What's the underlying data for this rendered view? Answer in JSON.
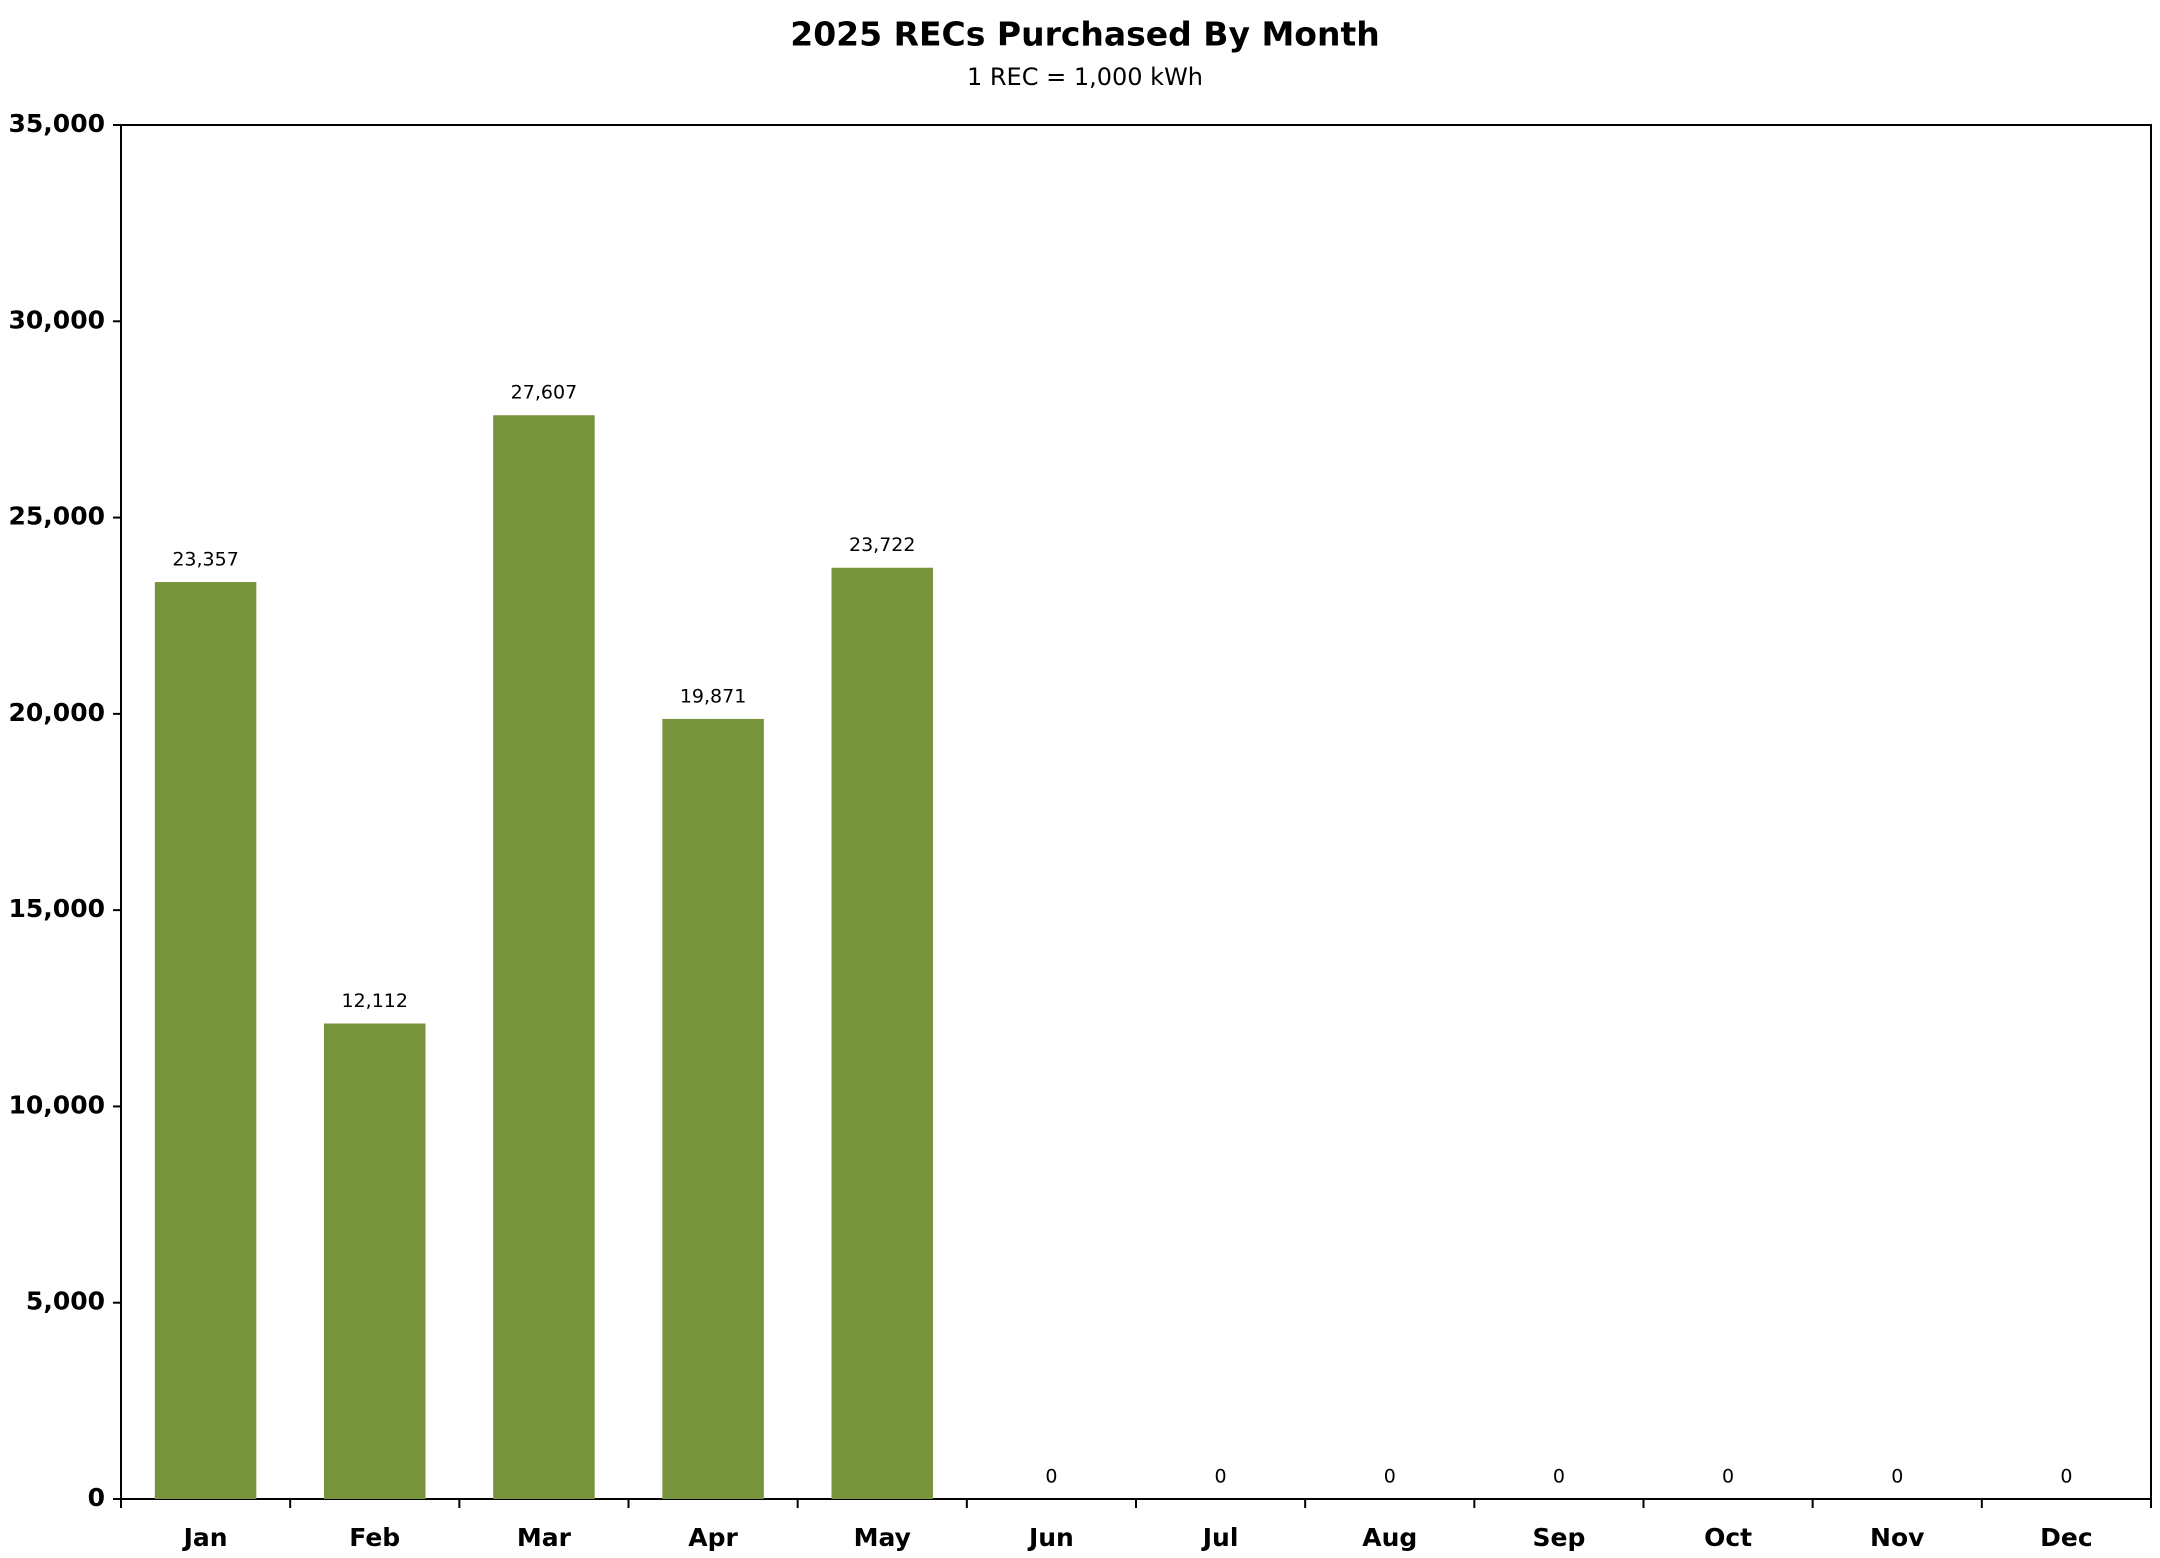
{
  "chart_data": {
    "type": "bar",
    "title": "2025 RECs Purchased By Month",
    "subtitle": "1 REC = 1,000 kWh",
    "categories": [
      "Jan",
      "Feb",
      "Mar",
      "Apr",
      "May",
      "Jun",
      "Jul",
      "Aug",
      "Sep",
      "Oct",
      "Nov",
      "Dec"
    ],
    "values": [
      23357,
      12112,
      27607,
      19871,
      23722,
      0,
      0,
      0,
      0,
      0,
      0,
      0
    ],
    "value_labels": [
      "23,357",
      "12,112",
      "27,607",
      "19,871",
      "23,722",
      "0",
      "0",
      "0",
      "0",
      "0",
      "0",
      "0"
    ],
    "color": "#77933c",
    "ylim": [
      0,
      35000
    ],
    "yticks": [
      0,
      {
        "value": 5000,
        "label": "5,000"
      },
      {
        "value": 10000,
        "label": "10,000"
      },
      {
        "value": 15000,
        "label": "15,000"
      },
      {
        "value": 20000,
        "label": "20,000"
      },
      {
        "value": 25000,
        "label": "25,000"
      },
      {
        "value": 30000,
        "label": "30,000"
      },
      {
        "value": 35000,
        "label": "35,000"
      }
    ],
    "grid": false
  }
}
